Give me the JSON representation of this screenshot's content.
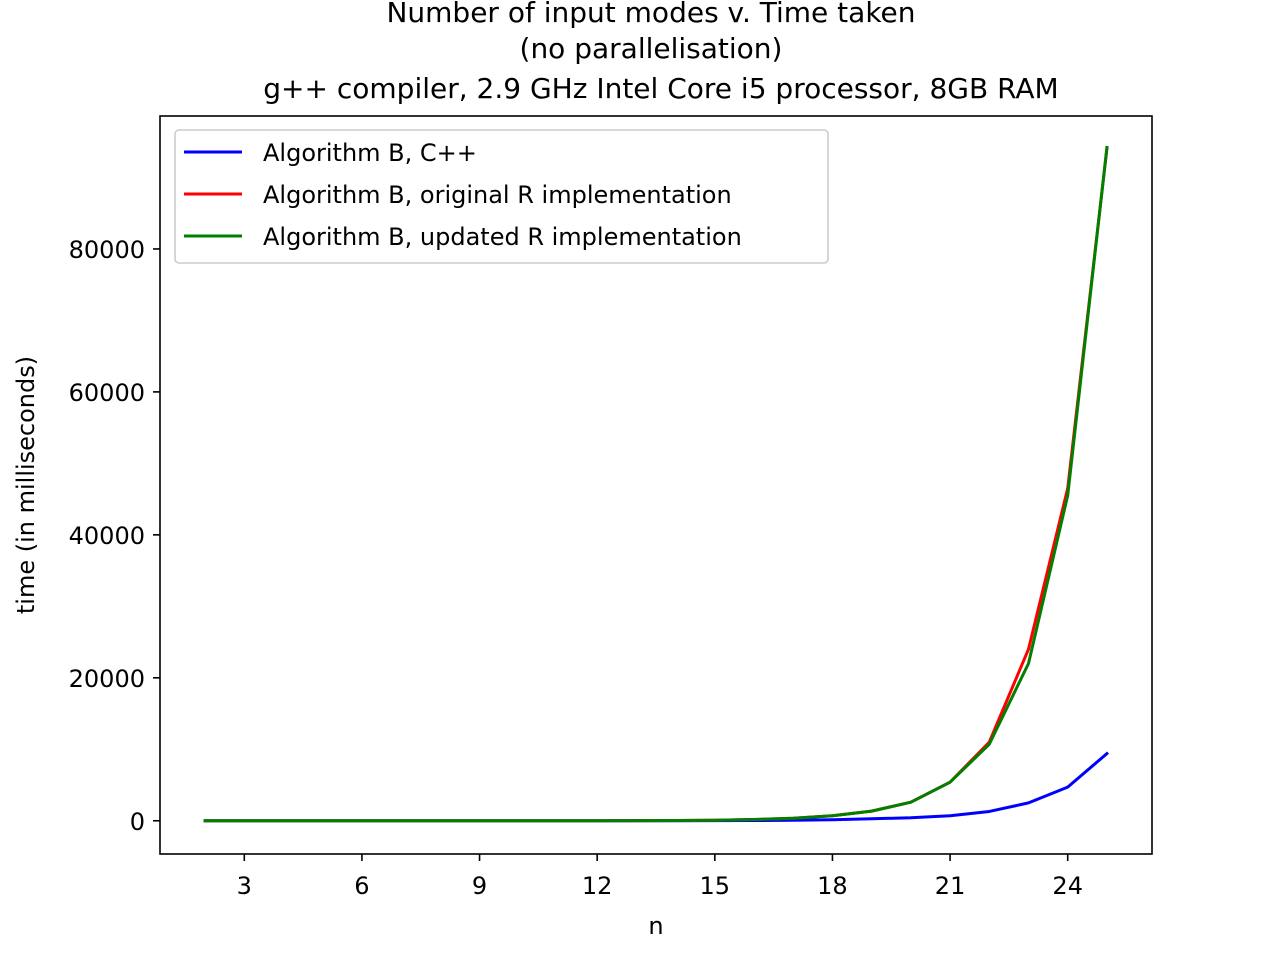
{
  "chart_data": {
    "type": "line",
    "title_lines": [
      "Number of input modes v. Time taken",
      "(no parallelisation)",
      "g++ compiler, 2.9 GHz Intel Core i5 processor, 8GB RAM"
    ],
    "xlabel": "n",
    "ylabel": "time (in milliseconds)",
    "xlim": [
      0.85,
      26.15
    ],
    "ylim": [
      -4650,
      98600
    ],
    "xticks": [
      3,
      6,
      9,
      12,
      15,
      18,
      21,
      24
    ],
    "yticks": [
      0,
      20000,
      40000,
      60000,
      80000
    ],
    "grid": false,
    "legend_position": "top-left",
    "x": [
      2,
      3,
      4,
      5,
      6,
      7,
      8,
      9,
      10,
      11,
      12,
      13,
      14,
      15,
      16,
      17,
      18,
      19,
      20,
      21,
      22,
      23,
      24,
      25
    ],
    "series": [
      {
        "name": "Algorithm B, C++",
        "color": "#0000ff",
        "values": [
          0,
          0,
          0,
          0,
          0,
          0,
          0,
          0,
          0,
          1,
          2,
          4,
          8,
          16,
          32,
          70,
          150,
          280,
          420,
          700,
          1300,
          2500,
          4700,
          9400
        ]
      },
      {
        "name": "Algorithm B, original R implementation",
        "color": "#ff0000",
        "values": [
          0,
          0,
          0,
          0,
          0,
          0,
          0,
          1,
          2,
          5,
          10,
          20,
          40,
          80,
          170,
          350,
          700,
          1350,
          2600,
          5400,
          11000,
          24000,
          46500,
          94000
        ]
      },
      {
        "name": "Algorithm B, updated R implementation",
        "color": "#008000",
        "values": [
          0,
          0,
          0,
          0,
          0,
          0,
          0,
          1,
          2,
          5,
          10,
          20,
          40,
          80,
          170,
          350,
          700,
          1350,
          2600,
          5400,
          10700,
          22000,
          45500,
          94200
        ]
      }
    ]
  }
}
